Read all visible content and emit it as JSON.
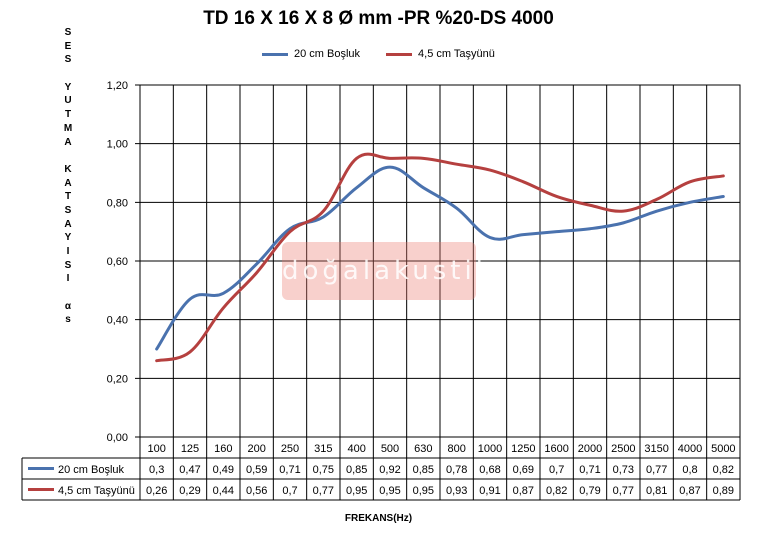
{
  "chart_data": {
    "type": "line",
    "title": "TD 16 X 16 X 8 Ø mm -PR %20-DS 4000",
    "ylabel": "SES YUTMA KATSAYISI αs",
    "xlabel": "FREKANS(Hz)",
    "categories": [
      "100",
      "125",
      "160",
      "200",
      "250",
      "315",
      "400",
      "500",
      "630",
      "800",
      "1000",
      "1250",
      "1600",
      "2000",
      "2500",
      "3150",
      "4000",
      "5000"
    ],
    "ylim": [
      0,
      1.2
    ],
    "yticks": [
      "0,00",
      "0,20",
      "0,40",
      "0,60",
      "0,80",
      "1,00",
      "1,20"
    ],
    "grid": true,
    "legend": "top",
    "series": [
      {
        "name": "20 cm Boşluk",
        "color": "#4a72ae",
        "values": [
          0.3,
          0.47,
          0.49,
          0.59,
          0.71,
          0.75,
          0.85,
          0.92,
          0.85,
          0.78,
          0.68,
          0.69,
          0.7,
          0.71,
          0.73,
          0.77,
          0.8,
          0.82
        ],
        "labels": [
          "0,3",
          "0,47",
          "0,49",
          "0,59",
          "0,71",
          "0,75",
          "0,85",
          "0,92",
          "0,85",
          "0,78",
          "0,68",
          "0,69",
          "0,7",
          "0,71",
          "0,73",
          "0,77",
          "0,8",
          "0,82"
        ]
      },
      {
        "name": "4,5 cm Taşyünü",
        "color": "#b5403f",
        "values": [
          0.26,
          0.29,
          0.44,
          0.56,
          0.7,
          0.77,
          0.95,
          0.95,
          0.95,
          0.93,
          0.91,
          0.87,
          0.82,
          0.79,
          0.77,
          0.81,
          0.87,
          0.89
        ],
        "labels": [
          "0,26",
          "0,29",
          "0,44",
          "0,56",
          "0,7",
          "0,77",
          "0,95",
          "0,95",
          "0,95",
          "0,93",
          "0,91",
          "0,87",
          "0,82",
          "0,79",
          "0,77",
          "0,81",
          "0,87",
          "0,89"
        ]
      }
    ]
  },
  "watermark": "doğalakustik"
}
